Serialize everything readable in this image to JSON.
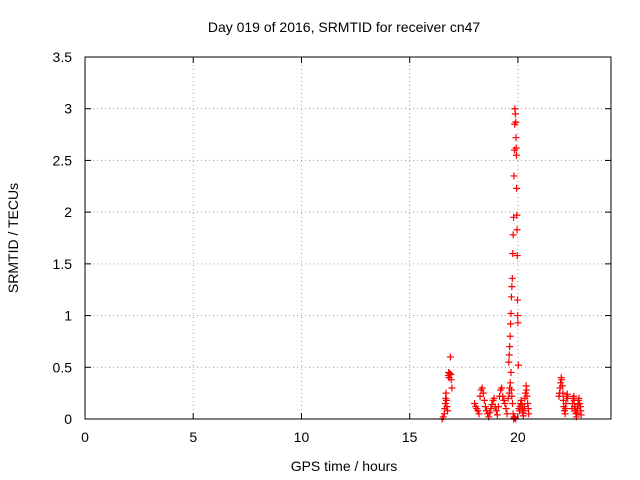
{
  "chart_data": {
    "type": "scatter",
    "title": "Day 019 of 2016, SRMTID for receiver cn47",
    "xlabel": "GPS time / hours",
    "ylabel": "SRMTID / TECUs",
    "xlim": [
      0,
      24.3
    ],
    "ylim": [
      0,
      3.5
    ],
    "x_ticks": [
      0,
      5,
      10,
      15,
      20
    ],
    "x_tick_labels": [
      "0",
      "5",
      "10",
      "15",
      "20"
    ],
    "y_ticks": [
      0,
      0.5,
      1,
      1.5,
      2,
      2.5,
      3,
      3.5
    ],
    "y_tick_labels": [
      "0",
      "0.5",
      "1",
      "1.5",
      "2",
      "2.5",
      "3",
      "3.5"
    ],
    "grid": true,
    "legend": "none",
    "marker": "plus",
    "color": "#ff0000",
    "series": [
      {
        "points": [
          [
            16.5,
            0.0
          ],
          [
            16.55,
            0.02
          ],
          [
            16.6,
            0.05
          ],
          [
            16.62,
            0.1
          ],
          [
            16.65,
            0.15
          ],
          [
            16.66,
            0.2
          ],
          [
            16.68,
            0.25
          ],
          [
            16.7,
            0.18
          ],
          [
            16.72,
            0.12
          ],
          [
            16.75,
            0.08
          ],
          [
            16.78,
            0.42
          ],
          [
            16.8,
            0.45
          ],
          [
            16.82,
            0.4
          ],
          [
            16.85,
            0.44
          ],
          [
            16.88,
            0.6
          ],
          [
            16.9,
            0.43
          ],
          [
            16.92,
            0.38
          ],
          [
            16.95,
            0.3
          ],
          [
            18.0,
            0.15
          ],
          [
            18.05,
            0.12
          ],
          [
            18.1,
            0.1
          ],
          [
            18.15,
            0.08
          ],
          [
            18.2,
            0.05
          ],
          [
            18.25,
            0.22
          ],
          [
            18.3,
            0.28
          ],
          [
            18.35,
            0.3
          ],
          [
            18.4,
            0.25
          ],
          [
            18.45,
            0.18
          ],
          [
            18.5,
            0.12
          ],
          [
            18.55,
            0.08
          ],
          [
            18.6,
            0.05
          ],
          [
            18.65,
            0.02
          ],
          [
            18.7,
            0.06
          ],
          [
            18.75,
            0.1
          ],
          [
            18.8,
            0.14
          ],
          [
            18.85,
            0.18
          ],
          [
            18.9,
            0.2
          ],
          [
            18.95,
            0.12
          ],
          [
            19.0,
            0.08
          ],
          [
            19.05,
            0.04
          ],
          [
            19.1,
            0.12
          ],
          [
            19.15,
            0.22
          ],
          [
            19.2,
            0.28
          ],
          [
            19.25,
            0.3
          ],
          [
            19.3,
            0.22
          ],
          [
            19.35,
            0.18
          ],
          [
            19.4,
            0.15
          ],
          [
            19.45,
            0.1
          ],
          [
            19.5,
            0.05
          ],
          [
            19.55,
            0.2
          ],
          [
            19.6,
            0.25
          ],
          [
            19.62,
            0.3
          ],
          [
            19.65,
            0.35
          ],
          [
            19.68,
            0.45
          ],
          [
            19.7,
            0.28
          ],
          [
            19.72,
            0.22
          ],
          [
            19.75,
            0.15
          ],
          [
            19.78,
            0.05
          ],
          [
            19.8,
            0.0
          ],
          [
            19.82,
            0.02
          ],
          [
            19.85,
            0.01
          ],
          [
            19.9,
            0.0
          ],
          [
            19.58,
            0.55
          ],
          [
            19.6,
            0.62
          ],
          [
            19.62,
            0.7
          ],
          [
            19.64,
            0.8
          ],
          [
            19.66,
            0.92
          ],
          [
            19.68,
            1.02
          ],
          [
            19.7,
            1.18
          ],
          [
            19.72,
            1.28
          ],
          [
            19.74,
            1.36
          ],
          [
            19.76,
            1.6
          ],
          [
            19.78,
            1.78
          ],
          [
            19.8,
            1.95
          ],
          [
            19.82,
            2.35
          ],
          [
            19.84,
            2.6
          ],
          [
            19.85,
            2.85
          ],
          [
            19.86,
            3.0
          ],
          [
            19.88,
            2.95
          ],
          [
            19.9,
            2.87
          ],
          [
            19.91,
            2.72
          ],
          [
            19.92,
            2.62
          ],
          [
            19.93,
            2.55
          ],
          [
            19.94,
            2.23
          ],
          [
            19.95,
            1.97
          ],
          [
            19.96,
            1.83
          ],
          [
            19.97,
            1.58
          ],
          [
            19.98,
            1.15
          ],
          [
            19.99,
            1.0
          ],
          [
            20.0,
            0.93
          ],
          [
            20.02,
            0.52
          ],
          [
            20.05,
            0.1
          ],
          [
            20.08,
            0.08
          ],
          [
            20.1,
            0.12
          ],
          [
            20.12,
            0.15
          ],
          [
            20.15,
            0.18
          ],
          [
            20.18,
            0.14
          ],
          [
            20.2,
            0.1
          ],
          [
            20.22,
            0.06
          ],
          [
            20.25,
            0.03
          ],
          [
            20.28,
            0.08
          ],
          [
            20.3,
            0.12
          ],
          [
            20.32,
            0.2
          ],
          [
            20.35,
            0.25
          ],
          [
            20.38,
            0.32
          ],
          [
            20.4,
            0.28
          ],
          [
            20.42,
            0.22
          ],
          [
            20.45,
            0.15
          ],
          [
            20.48,
            0.1
          ],
          [
            20.5,
            0.05
          ],
          [
            21.9,
            0.22
          ],
          [
            21.92,
            0.25
          ],
          [
            21.95,
            0.3
          ],
          [
            21.97,
            0.35
          ],
          [
            22.0,
            0.4
          ],
          [
            22.02,
            0.38
          ],
          [
            22.05,
            0.32
          ],
          [
            22.08,
            0.25
          ],
          [
            22.1,
            0.18
          ],
          [
            22.12,
            0.12
          ],
          [
            22.15,
            0.08
          ],
          [
            22.18,
            0.05
          ],
          [
            22.2,
            0.1
          ],
          [
            22.22,
            0.15
          ],
          [
            22.25,
            0.22
          ],
          [
            22.28,
            0.24
          ],
          [
            22.3,
            0.2
          ],
          [
            22.5,
            0.1
          ],
          [
            22.52,
            0.15
          ],
          [
            22.55,
            0.2
          ],
          [
            22.58,
            0.22
          ],
          [
            22.6,
            0.18
          ],
          [
            22.62,
            0.12
          ],
          [
            22.65,
            0.08
          ],
          [
            22.68,
            0.05
          ],
          [
            22.7,
            0.02
          ],
          [
            22.72,
            0.06
          ],
          [
            22.75,
            0.1
          ],
          [
            22.78,
            0.14
          ],
          [
            22.8,
            0.18
          ],
          [
            22.82,
            0.2
          ],
          [
            22.85,
            0.15
          ],
          [
            22.88,
            0.12
          ],
          [
            22.9,
            0.08
          ],
          [
            22.92,
            0.04
          ]
        ]
      }
    ]
  }
}
